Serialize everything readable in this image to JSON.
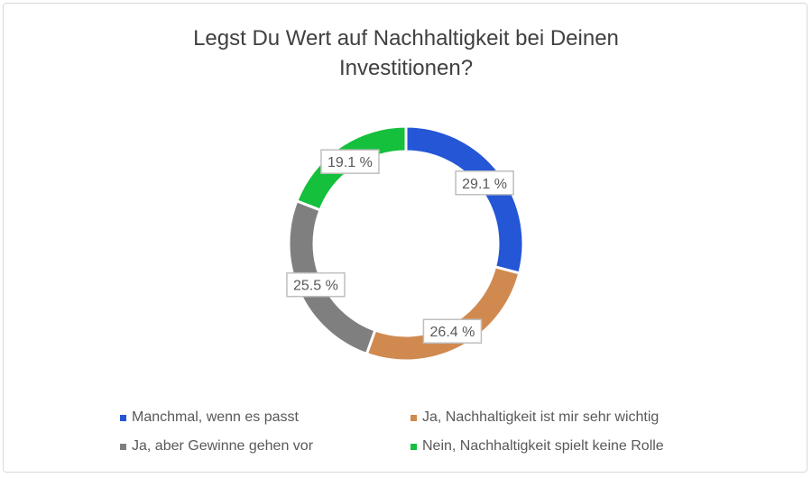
{
  "chart_data": {
    "type": "pie",
    "variant": "donut",
    "title_lines": [
      "Legst Du Wert auf Nachhaltigkeit bei Deinen",
      "Investitionen?"
    ],
    "categories": [
      "Manchmal, wenn es passt",
      "Ja, Nachhaltigkeit ist mir sehr wichtig",
      "Ja, aber Gewinne gehen vor",
      "Nein, Nachhaltigkeit spielt keine Rolle"
    ],
    "values": [
      29.1,
      26.4,
      25.5,
      19.1
    ],
    "data_labels": [
      "29.1 %",
      "26.4 %",
      "25.5 %",
      "19.1 %"
    ],
    "colors": [
      "#2456d6",
      "#d08a50",
      "#7f7f7f",
      "#15c03c"
    ],
    "legend_position": "bottom"
  }
}
